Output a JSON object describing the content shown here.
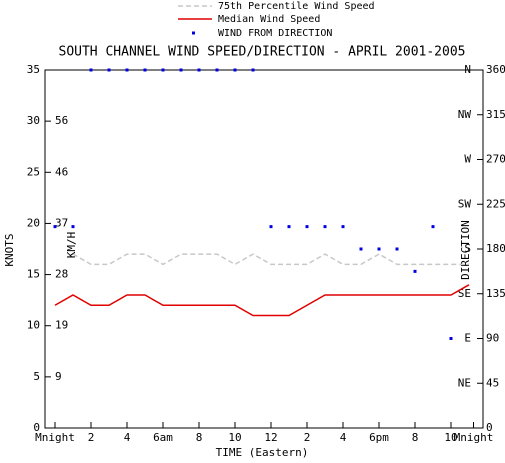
{
  "chart_data": {
    "type": "line",
    "title": "SOUTH CHANNEL WIND SPEED/DIRECTION - APRIL 2001-2005",
    "x_label": "TIME (Eastern)",
    "y_label": "KNOTS",
    "y_inner_label": "KM/H",
    "y2_label": "DIRECTION",
    "x": [
      0,
      1,
      2,
      3,
      4,
      5,
      6,
      7,
      8,
      9,
      10,
      11,
      12,
      13,
      14,
      15,
      16,
      17,
      18,
      19,
      20,
      21,
      22,
      23
    ],
    "xlim": [
      0,
      23.25
    ],
    "xticks": [
      {
        "value": 0,
        "label": "Mnight"
      },
      2,
      4,
      {
        "value": 6,
        "label": "6am"
      },
      8,
      10,
      12,
      {
        "value": 14,
        "label": "2"
      },
      {
        "value": 16,
        "label": "4"
      },
      {
        "value": 18,
        "label": "6pm"
      },
      {
        "value": 20,
        "label": "8"
      },
      {
        "value": 22,
        "label": "10"
      },
      {
        "value": 23.25,
        "label": "Mnight"
      }
    ],
    "ylim": [
      0,
      35
    ],
    "yticks": [
      0,
      5,
      10,
      15,
      20,
      25,
      30,
      35
    ],
    "y_inner_ticks": [
      {
        "value": 5,
        "label": "9"
      },
      {
        "value": 10,
        "label": "19"
      },
      {
        "value": 15,
        "label": "28"
      },
      {
        "value": 20,
        "label": "37"
      },
      {
        "value": 25,
        "label": "46"
      },
      {
        "value": 30,
        "label": "56"
      }
    ],
    "y2lim": [
      0,
      360
    ],
    "y2ticks": [
      0,
      45,
      90,
      135,
      180,
      225,
      270,
      315,
      360
    ],
    "y2_inner_ticks": [
      {
        "value": 45,
        "label": "NE"
      },
      {
        "value": 90,
        "label": "E"
      },
      {
        "value": 135,
        "label": "SE"
      },
      {
        "value": 180,
        "label": "S"
      },
      {
        "value": 225,
        "label": "SW"
      },
      {
        "value": 270,
        "label": "W"
      },
      {
        "value": 315,
        "label": "NW"
      },
      {
        "value": 360,
        "label": "N"
      }
    ],
    "series": [
      {
        "name": "75th Percentile Wind Speed",
        "color": "#c8c8c8",
        "style": "dashed",
        "values": [
          null,
          17,
          16,
          16,
          17,
          17,
          16,
          17,
          17,
          17,
          16,
          17,
          16,
          16,
          16,
          17,
          16,
          16,
          17,
          16,
          16,
          16,
          16,
          16
        ]
      },
      {
        "name": "Median Wind Speed",
        "color": "#e00000",
        "style": "solid",
        "values": [
          12,
          13,
          12,
          12,
          13,
          13,
          12,
          12,
          12,
          12,
          12,
          11,
          11,
          11,
          12,
          13,
          13,
          13,
          13,
          13,
          13,
          13,
          13,
          14
        ]
      },
      {
        "name": "WIND FROM DIRECTION",
        "color": "#0000e0",
        "style": "dots",
        "axis": "y2",
        "values": [
          202.5,
          202.5,
          360,
          360,
          360,
          360,
          360,
          360,
          360,
          360,
          360,
          360,
          202.5,
          202.5,
          202.5,
          202.5,
          202.5,
          180,
          180,
          180,
          157.5,
          202.5,
          90,
          null
        ]
      }
    ]
  }
}
